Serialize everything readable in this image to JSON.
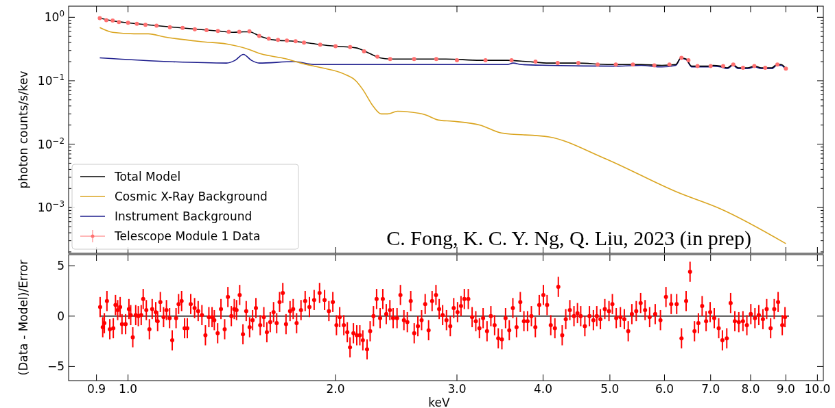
{
  "chart_data": [
    {
      "type": "line",
      "ylabel": "photon counts/s/kev",
      "log": "xy",
      "xlim": [
        0.82,
        10.2
      ],
      "ylim": [
        0.00019,
        1.5
      ],
      "tick_labels": "y",
      "legend": "bottom left",
      "grid": false,
      "xticks": [
        {
          "value": 0.9,
          "label": null
        },
        {
          "value": 1,
          "label": null
        },
        {
          "value": 2,
          "label": null
        },
        {
          "value": 3,
          "label": null
        },
        {
          "value": 4,
          "label": null
        },
        {
          "value": 5,
          "label": null
        },
        {
          "value": 6,
          "label": null
        },
        {
          "value": 7,
          "label": null
        },
        {
          "value": 8,
          "label": null
        },
        {
          "value": 9,
          "label": null
        },
        {
          "value": 10,
          "label": null
        }
      ],
      "yticks": [
        {
          "value": 0.001,
          "label": "10$^{−3}$"
        },
        {
          "value": 0.01,
          "label": "10$^{−2}$"
        },
        {
          "value": 0.1,
          "label": "10$^{−1}$"
        },
        {
          "value": 1,
          "label": "10$^{0}$"
        }
      ],
      "annotations": [
        "C. Fong, K. C. Y. Ng, Q. Liu, 2023 (in prep)"
      ],
      "series": [
        {
          "name": "Total Model",
          "color": "#000000",
          "x": [
            0.91,
            0.95,
            1.0,
            1.1,
            1.235,
            1.35,
            1.42,
            1.47,
            1.5,
            1.55,
            1.63,
            1.74,
            1.87,
            2.0,
            2.14,
            2.24,
            2.32,
            2.4,
            2.89,
            3.24,
            3.55,
            3.8,
            4.08,
            4.47,
            5.01,
            5.55,
            5.95,
            6.23,
            6.34,
            6.45,
            6.57,
            6.92,
            7.06,
            7.24,
            7.4,
            7.54,
            7.68,
            7.92,
            8.11,
            8.29,
            8.59,
            8.73,
            8.86,
            9.0
          ],
          "values": [
            0.97,
            0.88,
            0.82,
            0.74,
            0.66,
            0.61,
            0.58,
            0.59,
            0.59,
            0.51,
            0.44,
            0.42,
            0.38,
            0.35,
            0.33,
            0.27,
            0.23,
            0.22,
            0.22,
            0.21,
            0.21,
            0.2,
            0.19,
            0.19,
            0.18,
            0.18,
            0.175,
            0.18,
            0.23,
            0.22,
            0.17,
            0.17,
            0.175,
            0.17,
            0.16,
            0.18,
            0.16,
            0.16,
            0.17,
            0.16,
            0.16,
            0.18,
            0.18,
            0.155
          ]
        },
        {
          "name": "Cosmic X-Ray Background",
          "color": "#daa520",
          "x": [
            0.91,
            0.95,
            1.02,
            1.07,
            1.13,
            1.29,
            1.39,
            1.5,
            1.55,
            1.63,
            1.7,
            1.78,
            1.91,
            2.05,
            2.14,
            2.19,
            2.27,
            2.33,
            2.38,
            2.46,
            2.57,
            2.7,
            2.82,
            2.95,
            3.24,
            3.48,
            4.08,
            4.89,
            6.3,
            7.24,
            9.0
          ],
          "values": [
            0.69,
            0.58,
            0.55,
            0.55,
            0.49,
            0.41,
            0.38,
            0.31,
            0.27,
            0.24,
            0.22,
            0.19,
            0.16,
            0.13,
            0.1,
            0.073,
            0.039,
            0.03,
            0.03,
            0.033,
            0.032,
            0.029,
            0.024,
            0.023,
            0.02,
            0.015,
            0.013,
            0.0061,
            0.0017,
            0.00095,
            0.00027
          ]
        },
        {
          "name": "Instrument Background",
          "color": "#1c1c8c",
          "x": [
            0.91,
            1.15,
            1.39,
            1.43,
            1.47,
            1.51,
            1.55,
            1.74,
            1.87,
            2.0,
            2.24,
            3.24,
            3.55,
            3.62,
            3.72,
            4.08,
            5.13,
            5.55,
            5.95,
            6.23,
            6.34,
            6.45,
            6.57,
            6.92,
            7.06,
            7.24,
            7.4,
            7.54,
            7.68,
            7.92,
            8.11,
            8.29,
            8.59,
            8.73,
            8.86,
            9.0
          ],
          "values": [
            0.23,
            0.2,
            0.19,
            0.21,
            0.26,
            0.21,
            0.19,
            0.2,
            0.18,
            0.18,
            0.18,
            0.18,
            0.18,
            0.19,
            0.18,
            0.175,
            0.17,
            0.175,
            0.165,
            0.175,
            0.225,
            0.215,
            0.165,
            0.165,
            0.17,
            0.165,
            0.155,
            0.175,
            0.155,
            0.155,
            0.165,
            0.155,
            0.155,
            0.175,
            0.175,
            0.15
          ]
        },
        {
          "name": "Telescope Module 1 Data",
          "type": "scatter",
          "color": "#ff7070",
          "x": [
            0.91,
            0.93,
            0.95,
            0.97,
            1.0,
            1.03,
            1.06,
            1.1,
            1.15,
            1.2,
            1.25,
            1.3,
            1.35,
            1.4,
            1.45,
            1.5,
            1.55,
            1.6,
            1.65,
            1.7,
            1.75,
            1.8,
            1.9,
            2.0,
            2.1,
            2.2,
            2.3,
            2.4,
            2.6,
            2.8,
            3.0,
            3.3,
            3.6,
            3.9,
            4.2,
            4.5,
            4.8,
            5.1,
            5.4,
            5.8,
            6.1,
            6.35,
            6.5,
            6.7,
            7.0,
            7.3,
            7.55,
            7.8,
            8.1,
            8.4,
            8.75,
            9.0
          ],
          "values": [
            0.97,
            0.9,
            0.89,
            0.84,
            0.82,
            0.79,
            0.76,
            0.74,
            0.7,
            0.68,
            0.65,
            0.63,
            0.61,
            0.59,
            0.59,
            0.6,
            0.51,
            0.46,
            0.44,
            0.43,
            0.42,
            0.4,
            0.37,
            0.35,
            0.34,
            0.29,
            0.24,
            0.22,
            0.22,
            0.22,
            0.21,
            0.21,
            0.21,
            0.2,
            0.19,
            0.19,
            0.18,
            0.18,
            0.18,
            0.175,
            0.18,
            0.23,
            0.21,
            0.17,
            0.17,
            0.17,
            0.18,
            0.16,
            0.17,
            0.16,
            0.18,
            0.155
          ]
        }
      ]
    },
    {
      "type": "scatter",
      "xlabel": "keV",
      "ylabel": "(Data - Model)/Error",
      "log": "x",
      "xlim": [
        0.82,
        10.2
      ],
      "ylim": [
        -6.4,
        6.1
      ],
      "grid": false,
      "color": "#ff0000",
      "xticks": [
        0.9,
        {
          "value": 1,
          "label": "1.0"
        },
        {
          "value": 2,
          "label": "2.0"
        },
        {
          "value": 3,
          "label": "3.0"
        },
        {
          "value": 4,
          "label": "4.0"
        },
        {
          "value": 5,
          "label": "5.0"
        },
        {
          "value": 6,
          "label": "6.0"
        },
        {
          "value": 7,
          "label": "7.0"
        },
        {
          "value": 8,
          "label": "8.0"
        },
        {
          "value": 9,
          "label": "9.0"
        },
        {
          "value": 10,
          "label": "10.0"
        }
      ],
      "yticks": [
        {
          "value": -5,
          "label": "−5"
        },
        0,
        5
      ],
      "ref_lines": [
        {
          "axis": "y",
          "value": 0,
          "color": "#000000"
        }
      ],
      "x": [
        0.911,
        0.919,
        0.924,
        0.932,
        0.941,
        0.952,
        0.959,
        0.966,
        0.974,
        0.98,
        0.992,
        1.003,
        1.009,
        1.016,
        1.026,
        1.035,
        1.045,
        1.052,
        1.063,
        1.074,
        1.084,
        1.097,
        1.104,
        1.114,
        1.126,
        1.137,
        1.149,
        1.159,
        1.174,
        1.184,
        1.196,
        1.208,
        1.219,
        1.233,
        1.249,
        1.264,
        1.28,
        1.295,
        1.31,
        1.324,
        1.334,
        1.349,
        1.364,
        1.381,
        1.396,
        1.412,
        1.426,
        1.437,
        1.452,
        1.468,
        1.484,
        1.501,
        1.516,
        1.533,
        1.555,
        1.574,
        1.59,
        1.608,
        1.626,
        1.643,
        1.659,
        1.677,
        1.695,
        1.718,
        1.736,
        1.756,
        1.782,
        1.807,
        1.833,
        1.862,
        1.896,
        1.928,
        1.956,
        1.982,
        2.006,
        2.028,
        2.056,
        2.08,
        2.099,
        2.123,
        2.147,
        2.169,
        2.191,
        2.222,
        2.245,
        2.27,
        2.294,
        2.321,
        2.342,
        2.369,
        2.398,
        2.424,
        2.456,
        2.484,
        2.513,
        2.542,
        2.571,
        2.601,
        2.633,
        2.666,
        2.698,
        2.729,
        2.761,
        2.797,
        2.827,
        2.86,
        2.897,
        2.934,
        2.968,
        3.006,
        3.041,
        3.075,
        3.116,
        3.156,
        3.195,
        3.234,
        3.274,
        3.317,
        3.36,
        3.402,
        3.444,
        3.486,
        3.529,
        3.573,
        3.616,
        3.661,
        3.707,
        3.752,
        3.798,
        3.847,
        3.898,
        3.949,
        4.004,
        4.054,
        4.104,
        4.161,
        4.209,
        4.264,
        4.315,
        4.374,
        4.435,
        4.487,
        4.536,
        4.599,
        4.67,
        4.732,
        4.786,
        4.844,
        4.916,
        4.985,
        5.042,
        5.107,
        5.179,
        5.247,
        5.316,
        5.381,
        5.46,
        5.541,
        5.624,
        5.71,
        5.817,
        5.92,
        6.03,
        6.136,
        6.25,
        6.351,
        6.45,
        6.535,
        6.633,
        6.72,
        6.805,
        6.895,
        6.989,
        7.085,
        7.192,
        7.281,
        7.388,
        7.484,
        7.59,
        7.691,
        7.798,
        7.901,
        8.006,
        8.117,
        8.222,
        8.336,
        8.442,
        8.554,
        8.657,
        8.77,
        8.892,
        8.974
      ],
      "values": [
        0.9,
        -1.1,
        -0.7,
        1.5,
        -1.3,
        -1.2,
        1.1,
        0.6,
        0.9,
        -0.8,
        -0.8,
        0.7,
        0.1,
        -2.1,
        0.1,
        0,
        0.1,
        1.7,
        0.6,
        -1.3,
        0.7,
        0.4,
        -0.5,
        1.4,
        -0.1,
        0.6,
        -0.2,
        -2.4,
        -0.2,
        1.2,
        1.5,
        -1.2,
        -1.2,
        1.2,
        0.8,
        0.5,
        0.1,
        -1.9,
        -0.1,
        -0.1,
        -0.4,
        -1.7,
        0.7,
        -1.3,
        1.9,
        0,
        0.7,
        0.6,
        2.1,
        -1.8,
        0.5,
        -1.1,
        -0.4,
        0.8,
        -0.9,
        -0.1,
        -1.6,
        -0.6,
        0.4,
        -0.7,
        1.4,
        2.3,
        -0.8,
        0.5,
        0.7,
        -0.7,
        0.6,
        1.5,
        0.9,
        1.6,
        2.3,
        1.6,
        0.5,
        1.4,
        -0.9,
        -0.1,
        -0.9,
        -1.6,
        -3.1,
        -1.7,
        -1.9,
        -1.9,
        -2.4,
        -3.3,
        -1.5,
        0,
        1.7,
        -0.2,
        1.7,
        0.2,
        0.6,
        -0.2,
        -0.2,
        2.1,
        -0.4,
        -0.6,
        1.5,
        -1.7,
        -1.0,
        -0.4,
        1.2,
        -1.4,
        1.5,
        2.1,
        0.7,
        0.1,
        -0.4,
        -1.0,
        0.8,
        0.4,
        1.0,
        1.7,
        1.7,
        -0.1,
        -0.5,
        -1.2,
        -0.2,
        -1.5,
        0,
        -0.9,
        -2.2,
        -2.3,
        -0.2,
        -1.4,
        0.8,
        -1.1,
        1.4,
        -0.5,
        -0.5,
        0,
        -1.1,
        1.1,
        2.1,
        1.1,
        -0.9,
        -1.2,
        2.9,
        -1.9,
        -0.3,
        0.6,
        0,
        0.3,
        0,
        -1.0,
        0,
        -0.4,
        0,
        -0.3,
        0.7,
        0.5,
        1.2,
        -0.2,
        -0.1,
        -0.3,
        -1.5,
        0.2,
        0.5,
        1.3,
        0.6,
        -0.1,
        0.2,
        -0.4,
        1.9,
        1.2,
        1.2,
        -2.2,
        1.5,
        4.4,
        -1.5,
        -0.7,
        1.0,
        -0.5,
        0.4,
        -0.2,
        -1.2,
        -2.4,
        -2.2,
        1.3,
        -0.5,
        -0.6,
        -0.5,
        -0.9,
        0.2,
        -0.2,
        0.1,
        -0.3,
        0.7,
        -1.2,
        0.7,
        1.4,
        -0.9,
        -0.1
      ],
      "errors": [
        1,
        1,
        1,
        1,
        1,
        1,
        1,
        1,
        1,
        1,
        1,
        1,
        1,
        1,
        1,
        1,
        1,
        1,
        1,
        1,
        1,
        1,
        1,
        1,
        1,
        1,
        1,
        1,
        1,
        1,
        1,
        1,
        1,
        1,
        1,
        1,
        1,
        1,
        1,
        1,
        1,
        1,
        1,
        1,
        1,
        1,
        1,
        1,
        1,
        1,
        1,
        1,
        1,
        1,
        1,
        1,
        1,
        1,
        1,
        1,
        1,
        1,
        1,
        1,
        1,
        1,
        1,
        1,
        1,
        1,
        1,
        1,
        1,
        1,
        1,
        1,
        1,
        1,
        1,
        1,
        1,
        1,
        1,
        1,
        1,
        1,
        1,
        1,
        1,
        1,
        1,
        1,
        1,
        1,
        1,
        1,
        1,
        1,
        1,
        1,
        1,
        1,
        1,
        1,
        1,
        1,
        1,
        1,
        1,
        1,
        1,
        1,
        1,
        1,
        1,
        1,
        1,
        1,
        1,
        1,
        1,
        1,
        1,
        1,
        1,
        1,
        1,
        1,
        1,
        1,
        1,
        1,
        1,
        1,
        1,
        1,
        1,
        1,
        1,
        1,
        1,
        1,
        1,
        1,
        1,
        1,
        1,
        1,
        1,
        1,
        1,
        1,
        1,
        1,
        1,
        1,
        1,
        1,
        1,
        1,
        1,
        1,
        1,
        1,
        1,
        1,
        1,
        1,
        1,
        1,
        1,
        1,
        1,
        1,
        1,
        1,
        1,
        1,
        1,
        1,
        1,
        1,
        1,
        1,
        1,
        1,
        1,
        1,
        1,
        1,
        1,
        1
      ]
    }
  ]
}
